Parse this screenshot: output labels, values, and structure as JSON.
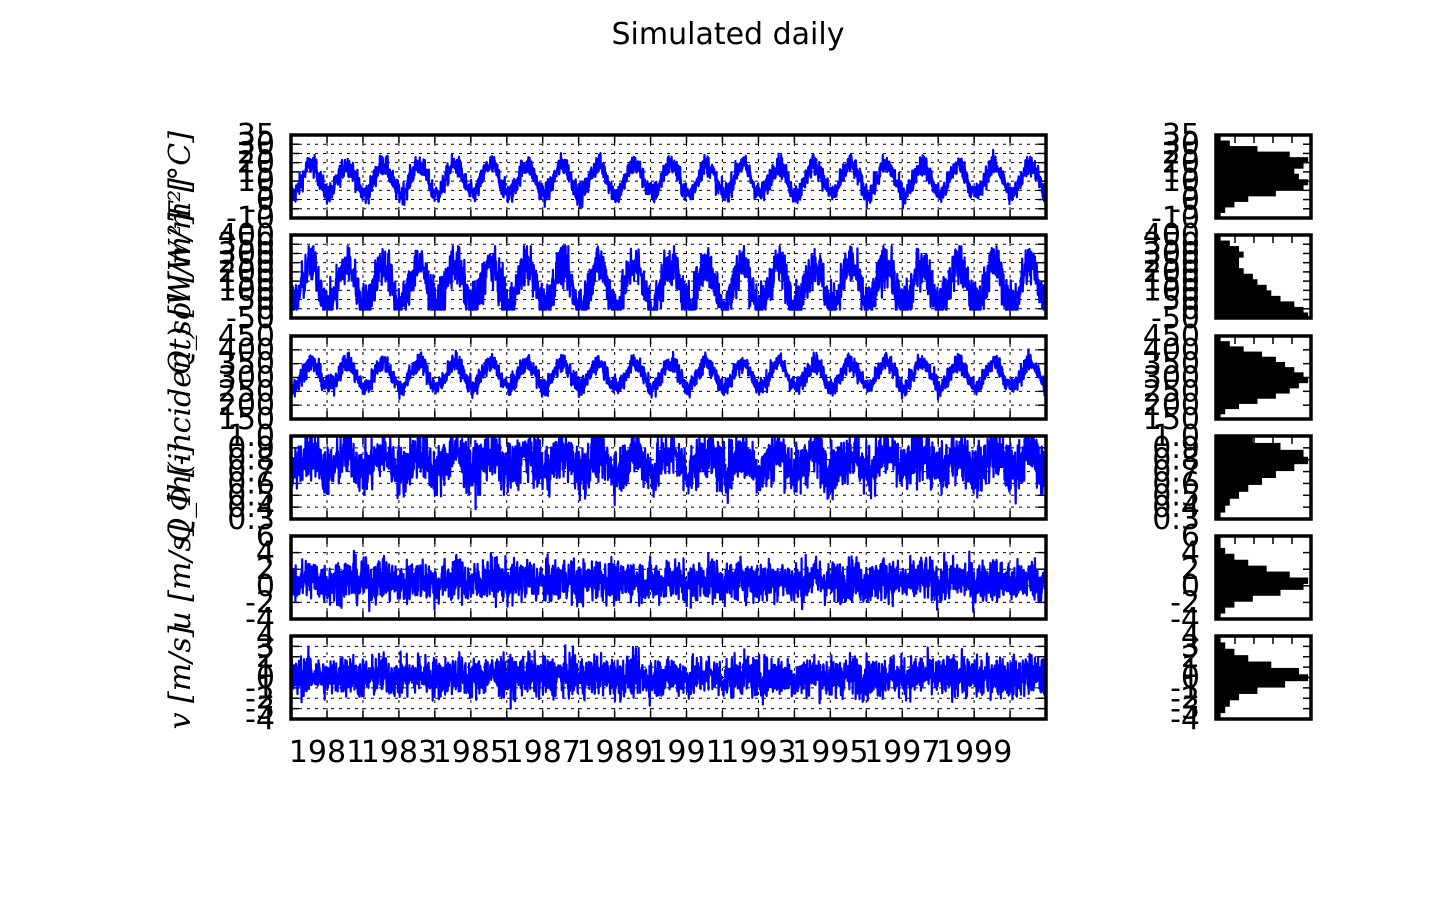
{
  "chart_data": {
    "type": "line",
    "title": "Simulated daily",
    "x": {
      "tick_labels": [
        "1981",
        "1983",
        "1985",
        "1987",
        "1989",
        "1991",
        "1993",
        "1995",
        "1997",
        "1999"
      ],
      "range": [
        "1980-01-01",
        "2000-12-31"
      ]
    },
    "grid": true,
    "series_color": "#0000ff",
    "histogram_color": "#000000",
    "panels": [
      {
        "ylabel": "T [°C]",
        "ylim": [
          -10,
          35
        ],
        "yticks": [
          "-10",
          "-5",
          "0",
          "5",
          "10",
          "15",
          "20",
          "25",
          "30",
          "35"
        ],
        "seasonal": {
          "mean": 11,
          "amplitude": 8,
          "noise": 3,
          "min": -8,
          "max": 31
        },
        "hist": {
          "counts": [
            1,
            2,
            4,
            7,
            13,
            19,
            20,
            18,
            17,
            19,
            20,
            16,
            9,
            3,
            1
          ]
        }
      },
      {
        "ylabel": "Q_sol [W/m²]",
        "ylim": [
          -50,
          400
        ],
        "yticks": [
          "-50",
          "0",
          "50",
          "100",
          "150",
          "200",
          "250",
          "300",
          "350",
          "400"
        ],
        "seasonal": {
          "mean": 130,
          "amplitude": 115,
          "noise": 60,
          "min": -5,
          "max": 340
        },
        "hist": {
          "counts": [
            20,
            19,
            17,
            14,
            12,
            11,
            9,
            8,
            6,
            5,
            5,
            6,
            5,
            3,
            1
          ]
        }
      },
      {
        "ylabel": "Q_lh(incident) [W/m²]",
        "ylim": [
          150,
          450
        ],
        "yticks": [
          "150",
          "200",
          "250",
          "300",
          "350",
          "400",
          "450"
        ],
        "seasonal": {
          "mean": 310,
          "amplitude": 45,
          "noise": 18,
          "min": 180,
          "max": 420
        },
        "hist": {
          "counts": [
            1,
            2,
            5,
            9,
            13,
            16,
            18,
            20,
            19,
            17,
            15,
            13,
            10,
            6,
            3,
            1
          ]
        }
      },
      {
        "ylabel": "Φ [-]",
        "ylim": [
          0.3,
          1.0
        ],
        "yticks": [
          "0.3",
          "0.4",
          "0.5",
          "0.6",
          "0.7",
          "0.8",
          "0.9",
          "1.0"
        ],
        "seasonal": {
          "mean": 0.78,
          "amplitude": 0.08,
          "noise": 0.11,
          "min": 0.31,
          "max": 0.99
        },
        "hist": {
          "counts": [
            1,
            2,
            3,
            5,
            7,
            10,
            13,
            17,
            20,
            19,
            14,
            8
          ]
        }
      },
      {
        "ylabel": "u [m/s]",
        "ylim": [
          -4,
          6
        ],
        "yticks": [
          "-4",
          "-2",
          "0",
          "2",
          "4",
          "6"
        ],
        "seasonal": {
          "mean": 0.6,
          "amplitude": 0.3,
          "noise": 1.3,
          "min": -3.5,
          "max": 5.5
        },
        "hist": {
          "counts": [
            1,
            2,
            4,
            8,
            14,
            19,
            20,
            16,
            11,
            7,
            4,
            2,
            1,
            1
          ]
        }
      },
      {
        "ylabel": "v [m/s]",
        "ylim": [
          -4,
          4
        ],
        "yticks": [
          "-4",
          "-3",
          "-2",
          "-1",
          "0",
          "1",
          "2",
          "3",
          "4"
        ],
        "seasonal": {
          "mean": 0.1,
          "amplitude": 0.2,
          "noise": 1.0,
          "min": -3.0,
          "max": 3.5
        },
        "hist": {
          "counts": [
            1,
            2,
            3,
            5,
            9,
            15,
            20,
            18,
            12,
            7,
            4,
            2,
            1
          ]
        }
      }
    ]
  }
}
